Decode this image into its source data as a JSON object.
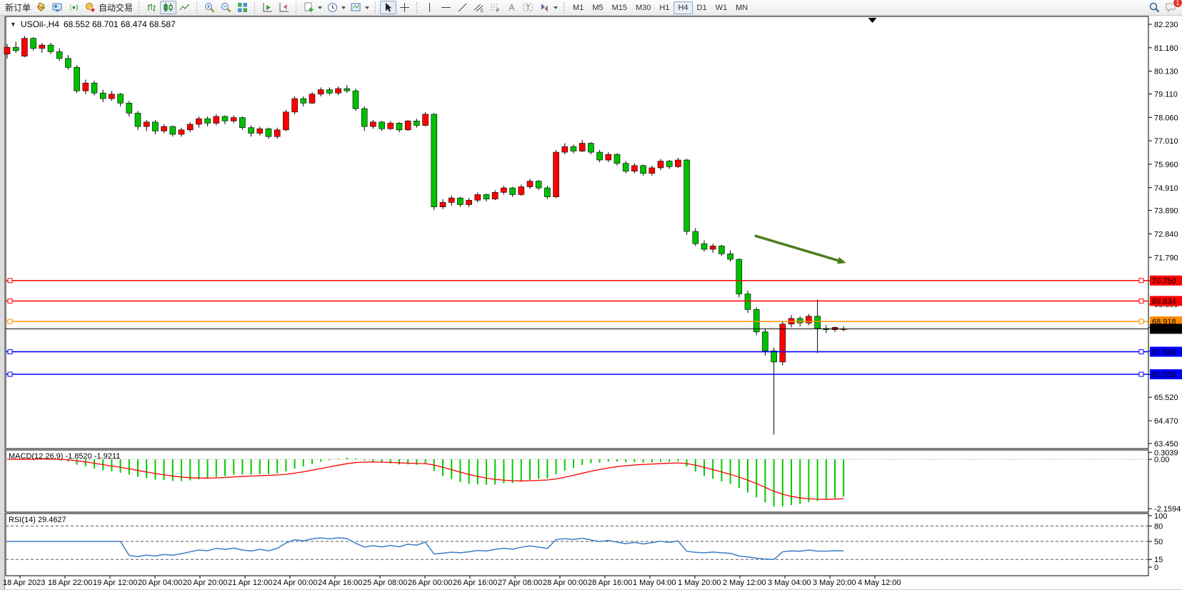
{
  "window": {
    "symbol_title": "USOil-,H4",
    "ohlc_title": "68.552 68.701 68.474 68.587"
  },
  "toolbar": {
    "new_order_label": "新订单",
    "auto_trading_label": "自动交易",
    "timeframes": [
      "M1",
      "M5",
      "M15",
      "M30",
      "H1",
      "H4",
      "D1",
      "W1",
      "MN"
    ],
    "active_timeframe": "H4",
    "notification_count": "1",
    "icons": [
      "new-order",
      "gold-stack",
      "market-watch",
      "signal",
      "auto-trading",
      "bar-chart",
      "candlestick-chart",
      "line-chart",
      "zoom-in",
      "zoom-out",
      "tile-windows",
      "auto-scroll",
      "chart-shift",
      "new-chart",
      "periods-clock",
      "templates",
      "cursor",
      "crosshair",
      "vertical-line",
      "horizontal-line",
      "trendline",
      "equidistant-channel",
      "fibonacci",
      "text",
      "text-label",
      "arrows",
      "search",
      "chat"
    ]
  },
  "indicators": {
    "macd": {
      "label": "MACD(12,26,9)",
      "main_value": "-1.8520",
      "signal_value": "-1.9211",
      "axis_labels": [
        {
          "text": "0.3039",
          "v": 0.3039
        },
        {
          "text": "0.00",
          "v": 0
        },
        {
          "text": "-2.1594",
          "v": -2.1594
        }
      ]
    },
    "rsi": {
      "label": "RSI(14)",
      "value": "29.4627",
      "axis_labels": [
        100,
        80,
        50,
        15,
        0
      ],
      "level_lines": [
        80,
        50,
        15
      ]
    }
  },
  "chart_data": {
    "type": "candlestick",
    "symbol": "USOil-",
    "period": "H4",
    "title": "USOil-,H4 68.552 68.701 68.474 68.587",
    "price_ticks": [
      "82.230",
      "81.180",
      "80.130",
      "79.110",
      "78.060",
      "77.010",
      "75.960",
      "74.910",
      "73.890",
      "72.840",
      "71.790",
      "70.740",
      "69.690",
      "68.640",
      "67.590",
      "66.540",
      "65.520",
      "64.470",
      "63.450"
    ],
    "time_labels": [
      "18 Apr 2023",
      "18 Apr 22:00",
      "19 Apr 12:00",
      "20 Apr 04:00",
      "20 Apr 20:00",
      "21 Apr 12:00",
      "24 Apr 00:00",
      "24 Apr 16:00",
      "25 Apr 08:00",
      "26 Apr 00:00",
      "26 Apr 16:00",
      "27 Apr 08:00",
      "28 Apr 00:00",
      "28 Apr 16:00",
      "1 May 04:00",
      "1 May 20:00",
      "2 May 12:00",
      "3 May 04:00",
      "3 May 20:00",
      "4 May 12:00"
    ],
    "horizontal_lines": [
      {
        "label": "70.750",
        "color": "#ff0000"
      },
      {
        "label": "69.834",
        "color": "#ff0000"
      },
      {
        "label": "68.918",
        "color": "#ff8c00"
      },
      {
        "label": "67.560",
        "color": "#0000ff"
      },
      {
        "label": "66.550",
        "color": "#0000ff"
      }
    ],
    "current_price": {
      "label": "68.587"
    },
    "annotations": [
      {
        "type": "trend-arrow",
        "color": "#4e7d1e",
        "from_bar": 85.8,
        "from_price": 72.76,
        "to_bar": 96.3,
        "to_price": 71.54
      },
      {
        "type": "chart-shift-marker",
        "bar": 99.3
      }
    ],
    "colors": {
      "bull": "#ff0000",
      "bear": "#00c000",
      "wick": "#000000",
      "macd_histogram": "#00cc00",
      "macd_signal": "#ff0000",
      "rsi_line": "#3b7dc4",
      "background": "#ffffff",
      "border": "#000000"
    },
    "candles": [
      [
        80.9,
        81.35,
        80.7,
        81.2
      ],
      [
        81.2,
        81.45,
        80.95,
        81.05
      ],
      [
        80.8,
        81.7,
        80.75,
        81.6
      ],
      [
        81.6,
        81.65,
        81.05,
        81.15
      ],
      [
        81.15,
        81.4,
        80.95,
        81.3
      ],
      [
        81.3,
        81.4,
        80.9,
        81.0
      ],
      [
        81.0,
        81.15,
        80.6,
        80.7
      ],
      [
        80.7,
        80.85,
        80.2,
        80.3
      ],
      [
        80.3,
        80.4,
        79.15,
        79.25
      ],
      [
        79.25,
        79.75,
        79.1,
        79.6
      ],
      [
        79.6,
        79.7,
        79.05,
        79.15
      ],
      [
        79.15,
        79.3,
        78.75,
        78.9
      ],
      [
        78.9,
        79.25,
        78.8,
        79.1
      ],
      [
        79.1,
        79.15,
        78.55,
        78.7
      ],
      [
        78.7,
        78.8,
        78.1,
        78.25
      ],
      [
        78.25,
        78.35,
        77.5,
        77.65
      ],
      [
        77.65,
        77.95,
        77.45,
        77.85
      ],
      [
        77.85,
        77.95,
        77.3,
        77.45
      ],
      [
        77.45,
        77.75,
        77.35,
        77.65
      ],
      [
        77.65,
        77.7,
        77.2,
        77.3
      ],
      [
        77.3,
        77.6,
        77.2,
        77.5
      ],
      [
        77.5,
        77.85,
        77.4,
        77.75
      ],
      [
        77.75,
        78.1,
        77.6,
        78.0
      ],
      [
        78.0,
        78.1,
        77.65,
        77.8
      ],
      [
        77.8,
        78.2,
        77.7,
        78.1
      ],
      [
        78.1,
        78.15,
        77.75,
        77.9
      ],
      [
        77.9,
        78.15,
        77.8,
        78.05
      ],
      [
        78.05,
        78.1,
        77.5,
        77.6
      ],
      [
        77.6,
        77.7,
        77.2,
        77.35
      ],
      [
        77.35,
        77.65,
        77.25,
        77.55
      ],
      [
        77.55,
        77.6,
        77.1,
        77.2
      ],
      [
        77.2,
        77.6,
        77.1,
        77.5
      ],
      [
        77.5,
        78.4,
        77.45,
        78.3
      ],
      [
        78.3,
        79.0,
        78.2,
        78.9
      ],
      [
        78.9,
        79.0,
        78.55,
        78.7
      ],
      [
        78.7,
        79.2,
        78.65,
        79.1
      ],
      [
        79.1,
        79.4,
        79.0,
        79.3
      ],
      [
        79.3,
        79.4,
        79.05,
        79.15
      ],
      [
        79.15,
        79.45,
        79.05,
        79.35
      ],
      [
        79.35,
        79.5,
        79.15,
        79.25
      ],
      [
        79.25,
        79.35,
        78.35,
        78.45
      ],
      [
        78.45,
        78.55,
        77.45,
        77.65
      ],
      [
        77.65,
        77.95,
        77.55,
        77.85
      ],
      [
        77.85,
        77.9,
        77.45,
        77.55
      ],
      [
        77.55,
        77.9,
        77.5,
        77.8
      ],
      [
        77.8,
        77.85,
        77.4,
        77.5
      ],
      [
        77.5,
        77.95,
        77.45,
        77.9
      ],
      [
        77.9,
        78.0,
        77.6,
        77.7
      ],
      [
        77.7,
        78.3,
        77.65,
        78.2
      ],
      [
        78.2,
        78.25,
        73.9,
        74.05
      ],
      [
        74.05,
        74.4,
        73.95,
        74.25
      ],
      [
        74.25,
        74.55,
        74.1,
        74.45
      ],
      [
        74.45,
        74.5,
        74.05,
        74.15
      ],
      [
        74.15,
        74.45,
        74.05,
        74.35
      ],
      [
        74.35,
        74.7,
        74.25,
        74.6
      ],
      [
        74.6,
        74.65,
        74.3,
        74.4
      ],
      [
        74.4,
        74.8,
        74.35,
        74.7
      ],
      [
        74.7,
        75.0,
        74.6,
        74.9
      ],
      [
        74.9,
        74.95,
        74.5,
        74.6
      ],
      [
        74.6,
        75.05,
        74.55,
        74.95
      ],
      [
        74.95,
        75.3,
        74.85,
        75.2
      ],
      [
        75.2,
        75.25,
        74.8,
        74.9
      ],
      [
        74.9,
        75.0,
        74.4,
        74.5
      ],
      [
        74.5,
        76.6,
        74.45,
        76.5
      ],
      [
        76.5,
        76.9,
        76.4,
        76.75
      ],
      [
        76.75,
        76.85,
        76.45,
        76.55
      ],
      [
        76.55,
        77.05,
        76.5,
        76.9
      ],
      [
        76.9,
        76.95,
        76.4,
        76.5
      ],
      [
        76.5,
        76.6,
        76.05,
        76.15
      ],
      [
        76.15,
        76.5,
        76.05,
        76.4
      ],
      [
        76.4,
        76.45,
        75.9,
        76.0
      ],
      [
        76.0,
        76.1,
        75.55,
        75.65
      ],
      [
        75.65,
        76.0,
        75.55,
        75.9
      ],
      [
        75.9,
        75.95,
        75.45,
        75.55
      ],
      [
        75.55,
        75.9,
        75.45,
        75.8
      ],
      [
        75.8,
        76.2,
        75.7,
        76.1
      ],
      [
        76.1,
        76.15,
        75.75,
        75.85
      ],
      [
        75.85,
        76.25,
        75.8,
        76.15
      ],
      [
        76.15,
        76.2,
        72.8,
        72.95
      ],
      [
        72.95,
        73.1,
        72.3,
        72.4
      ],
      [
        72.4,
        72.55,
        72.05,
        72.15
      ],
      [
        72.15,
        72.4,
        72.0,
        72.3
      ],
      [
        72.3,
        72.35,
        71.85,
        71.95
      ],
      [
        71.95,
        72.1,
        71.6,
        71.7
      ],
      [
        71.7,
        71.75,
        70.0,
        70.15
      ],
      [
        70.15,
        70.3,
        69.3,
        69.45
      ],
      [
        69.45,
        69.55,
        68.3,
        68.45
      ],
      [
        68.45,
        68.6,
        67.4,
        67.6
      ],
      [
        67.6,
        67.75,
        63.85,
        67.1
      ],
      [
        67.1,
        68.95,
        66.95,
        68.8
      ],
      [
        68.8,
        69.2,
        68.65,
        69.05
      ],
      [
        69.05,
        69.15,
        68.7,
        68.85
      ],
      [
        68.85,
        69.25,
        68.75,
        69.15
      ],
      [
        69.15,
        69.9,
        67.5,
        68.6
      ],
      [
        68.6,
        68.75,
        68.4,
        68.55
      ],
      [
        68.55,
        68.7,
        68.45,
        68.65
      ],
      [
        68.552,
        68.701,
        68.474,
        68.587
      ]
    ]
  }
}
